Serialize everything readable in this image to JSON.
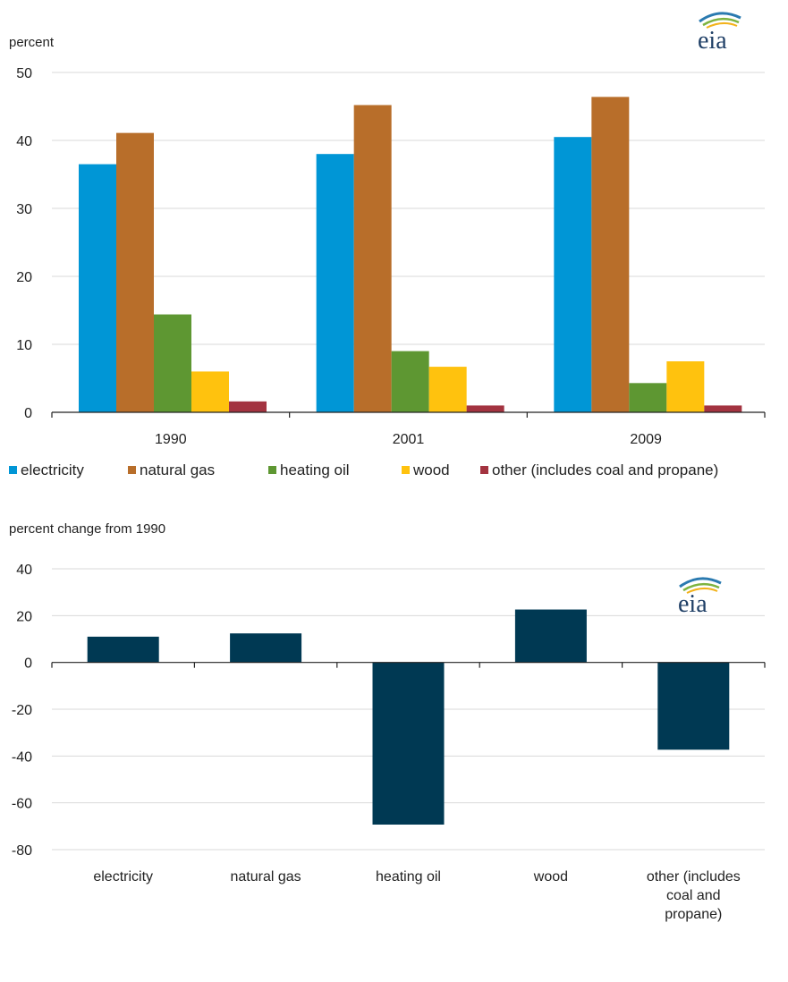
{
  "colors": {
    "electricity": "#0096d6",
    "natural_gas": "#b86e2a",
    "heating_oil": "#5e9732",
    "wood": "#ffc20e",
    "other": "#a33340",
    "change_bar": "#003953",
    "logo_swoosh_blue": "#2a7ab0",
    "logo_swoosh_green": "#7db33f",
    "logo_swoosh_yellow": "#f2b21b"
  },
  "logo": {
    "text": "eia"
  },
  "chart_data": [
    {
      "type": "bar",
      "ylabel": "percent",
      "ylim": [
        0,
        50
      ],
      "yticks": [
        0,
        10,
        20,
        30,
        40,
        50
      ],
      "grid": true,
      "legend_position": "bottom",
      "categories": [
        "1990",
        "2001",
        "2009"
      ],
      "series": [
        {
          "name": "electricity",
          "color_key": "electricity",
          "values": [
            36.5,
            38.0,
            40.5
          ]
        },
        {
          "name": "natural gas",
          "color_key": "natural_gas",
          "values": [
            41.1,
            45.2,
            46.4
          ]
        },
        {
          "name": "heating oil",
          "color_key": "heating_oil",
          "values": [
            14.4,
            9.0,
            4.3
          ]
        },
        {
          "name": "wood",
          "color_key": "wood",
          "values": [
            6.0,
            6.7,
            7.5
          ]
        },
        {
          "name": "other (includes coal and propane)",
          "color_key": "other",
          "values": [
            1.6,
            1.0,
            1.0
          ]
        }
      ]
    },
    {
      "type": "bar",
      "ylabel": "percent change from 1990",
      "ylim": [
        -80,
        40
      ],
      "yticks": [
        -80,
        -60,
        -40,
        -20,
        0,
        20,
        40
      ],
      "grid": true,
      "categories": [
        "electricity",
        "natural gas",
        "heating oil",
        "wood",
        "other (includes coal and propane)"
      ],
      "category_label_lines": [
        [
          "electricity"
        ],
        [
          "natural gas"
        ],
        [
          "heating oil"
        ],
        [
          "wood"
        ],
        [
          "other (includes",
          "coal and",
          "propane)"
        ]
      ],
      "values": [
        11,
        12.4,
        -69.3,
        22.6,
        -37.3
      ]
    }
  ]
}
